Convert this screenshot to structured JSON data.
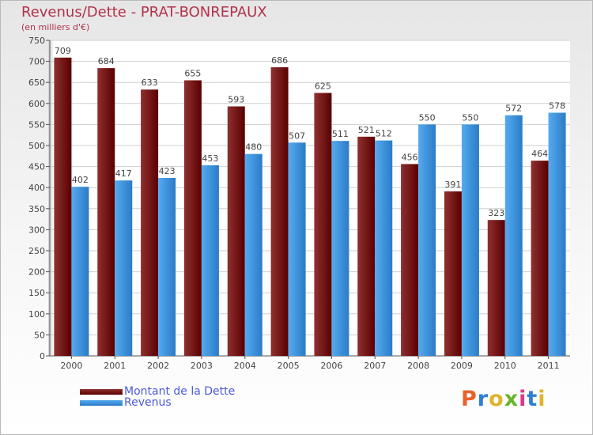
{
  "title": "Revenus/Dette - PRAT-BONREPAUX",
  "subtitle": "(en milliers d'€)",
  "logo_text": "Proxiti",
  "colors": {
    "title": "#b2324a",
    "dette_light": "#8f3030",
    "dette_dark": "#5a0000",
    "revenus_light": "#55aaf0",
    "revenus_dark": "#2a7cc6",
    "legend_text": "#4b5ad8"
  },
  "chart_data": {
    "type": "bar",
    "categories": [
      "2000",
      "2001",
      "2002",
      "2003",
      "2004",
      "2005",
      "2006",
      "2007",
      "2008",
      "2009",
      "2010",
      "2011"
    ],
    "series": [
      {
        "name": "Montant de la Dette",
        "values": [
          709,
          684,
          633,
          655,
          593,
          686,
          625,
          521,
          456,
          391,
          323,
          464
        ]
      },
      {
        "name": "Revenus",
        "values": [
          402,
          417,
          423,
          453,
          480,
          507,
          511,
          512,
          550,
          550,
          572,
          578
        ]
      }
    ],
    "yticks": [
      0,
      50,
      100,
      150,
      200,
      250,
      300,
      350,
      400,
      450,
      500,
      550,
      600,
      650,
      700,
      750
    ],
    "ylim": [
      0,
      750
    ],
    "grid": true,
    "legend": "bottom-left"
  }
}
